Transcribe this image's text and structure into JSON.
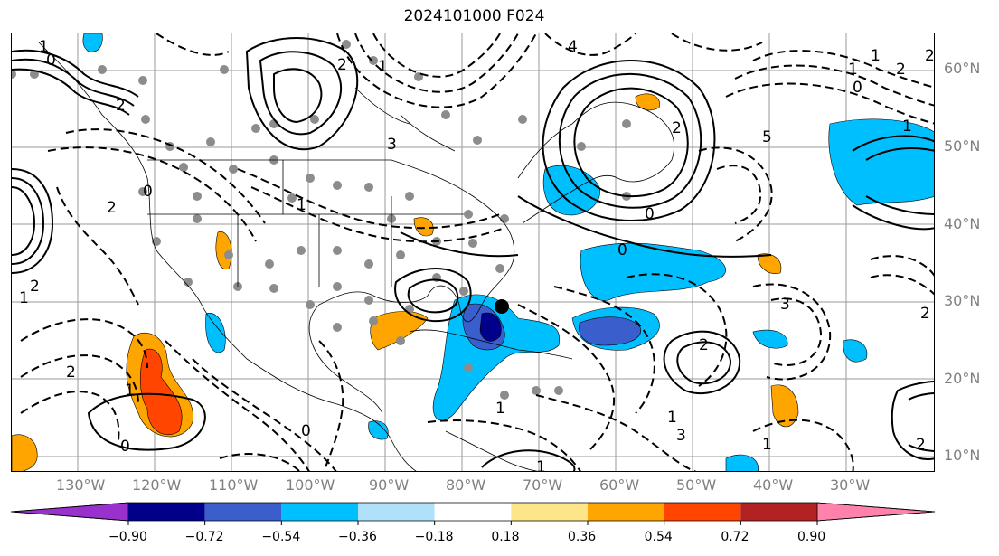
{
  "title": "2024101000 F024",
  "lat_labels": [
    "60°N",
    "50°N",
    "40°N",
    "30°N",
    "20°N",
    "10°N"
  ],
  "lon_labels": [
    "130°W",
    "120°W",
    "110°W",
    "100°W",
    "90°W",
    "80°W",
    "70°W",
    "60°W",
    "50°W",
    "40°W",
    "30°W"
  ],
  "colorbar": {
    "ticks": [
      "−0.90",
      "−0.72",
      "−0.54",
      "−0.36",
      "−0.18",
      "0.18",
      "0.36",
      "0.54",
      "0.72",
      "0.90"
    ],
    "colors": [
      "#9932cc",
      "#00008b",
      "#3a5fcd",
      "#00bfff",
      "#afe1fa",
      "#ffffff",
      "#fde68a",
      "#ffa500",
      "#ff4500",
      "#b22222",
      "#ff82ab"
    ]
  },
  "contour_labels": [
    "1",
    "2",
    "0",
    "2",
    "1",
    "3",
    "1",
    "2",
    "1",
    "0",
    "1",
    "2",
    "5",
    "1",
    "1",
    "0",
    "2",
    "1",
    "2",
    "0",
    "2",
    "1",
    "3",
    "2",
    "1",
    "4",
    "0",
    "2",
    "0",
    "1",
    "3",
    "1",
    "2",
    "0",
    "2"
  ]
}
